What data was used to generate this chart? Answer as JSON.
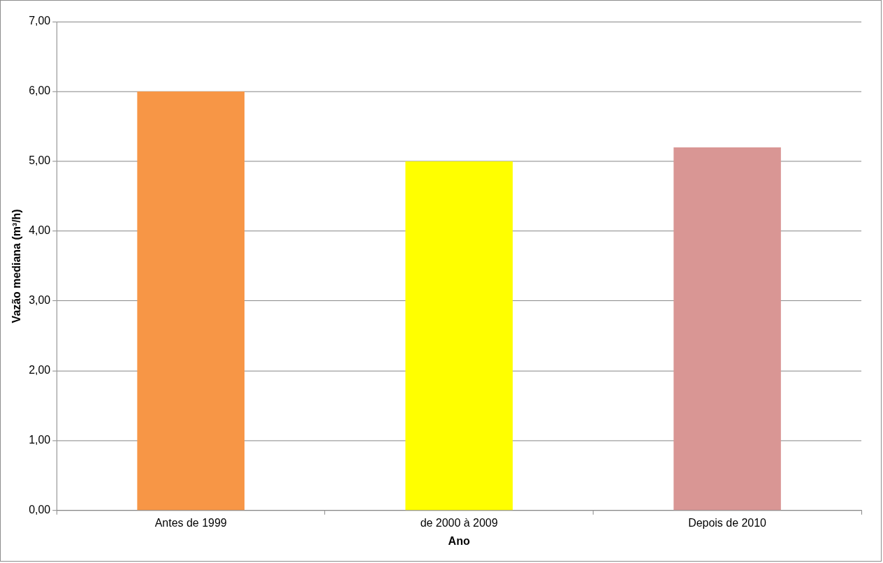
{
  "chart_data": {
    "type": "bar",
    "xlabel": "Ano",
    "ylabel": "Vazão mediana (m³/h)",
    "categories": [
      "Antes de 1999",
      "de 2000 à 2009",
      "Depois de 2010"
    ],
    "values": [
      6.0,
      5.0,
      5.2
    ],
    "colors": [
      "#f79646",
      "#ffff00",
      "#d99694"
    ],
    "ylim": [
      0,
      7
    ],
    "yticks": [
      {
        "value": 0,
        "label": "0,00"
      },
      {
        "value": 1,
        "label": "1,00"
      },
      {
        "value": 2,
        "label": "2,00"
      },
      {
        "value": 3,
        "label": "3,00"
      },
      {
        "value": 4,
        "label": "4,00"
      },
      {
        "value": 5,
        "label": "5,00"
      },
      {
        "value": 6,
        "label": "6,00"
      },
      {
        "value": 7,
        "label": "7,00"
      }
    ],
    "grid": "y",
    "legend": false
  }
}
